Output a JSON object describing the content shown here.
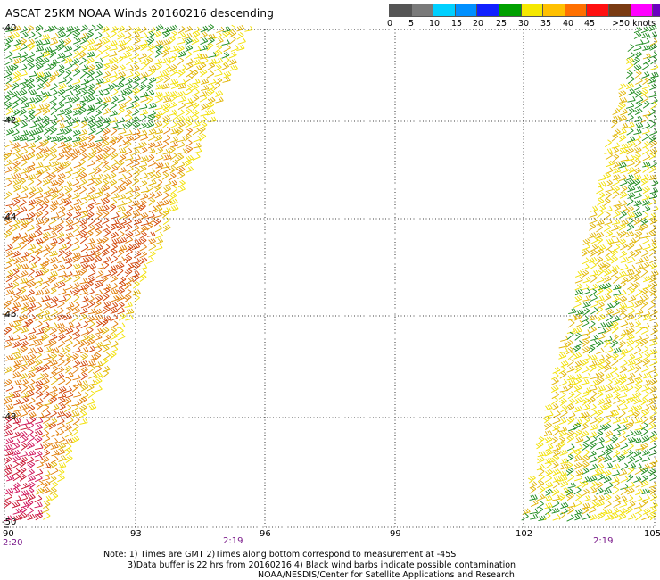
{
  "title": "ASCAT 25KM NOAA Winds 20160216 descending",
  "legend": {
    "colors": [
      "#555555",
      "#707070",
      "#00c8ff",
      "#0090ff",
      "#0028ff",
      "#009900",
      "#00cc00",
      "#ffee00",
      "#ffcc00",
      "#ff8800",
      "#ff3300",
      "#e00000",
      "#7a3b12",
      "#c04040",
      "#ff00ff",
      "#aa00cc",
      "#7700bb",
      "#440088"
    ],
    "ticks": [
      "0",
      "5",
      "10",
      "15",
      "20",
      "25",
      "30",
      "35",
      "40",
      "45",
      ">50 knots"
    ]
  },
  "map": {
    "lat_labels": [
      "-40",
      "-42",
      "-44",
      "-46",
      "-48",
      "-50"
    ],
    "lon_labels": [
      "90",
      "93",
      "96",
      "99",
      "102",
      "105"
    ],
    "times": [
      "2:20",
      "2:19",
      "2:19"
    ]
  },
  "notes": {
    "line1": "Note: 1) Times are GMT 2)Times along bottom correspond to measurement at -45S",
    "line2": "3)Data buffer is 22 hrs from 20160216 4) Black wind barbs indicate possible contamination",
    "line3": "NOAA/NESDIS/Center for Satellite Applications and Research"
  },
  "palette": {
    "green": "#1a8a1a",
    "yellow": "#f2e000",
    "gold": "#e0b400",
    "orange": "#e07a00",
    "redorange": "#d04000",
    "red": "#c8102e",
    "magenta": "#d0105a"
  }
}
